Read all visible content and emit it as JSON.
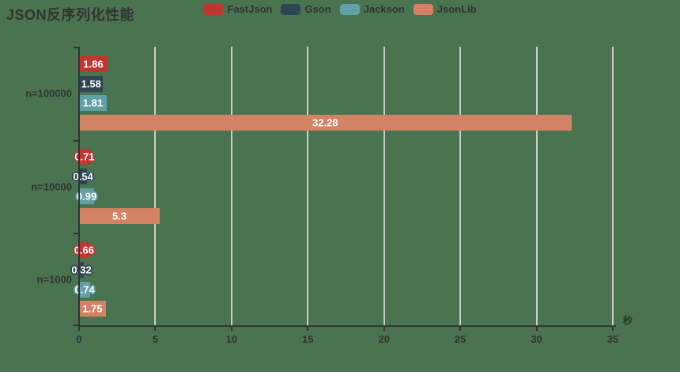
{
  "title": "JSON反序列化性能",
  "chart_data": {
    "type": "bar",
    "orientation": "horizontal",
    "title": "JSON反序列化性能",
    "categories": [
      "n=100000",
      "n=10000",
      "n=1000"
    ],
    "series": [
      {
        "name": "FastJson",
        "color": "#c23531",
        "values": [
          1.86,
          0.71,
          0.66
        ]
      },
      {
        "name": "Gson",
        "color": "#2f4554",
        "values": [
          1.58,
          0.54,
          0.32
        ]
      },
      {
        "name": "Jackson",
        "color": "#61a0a8",
        "values": [
          1.81,
          0.99,
          0.74
        ]
      },
      {
        "name": "JsonLib",
        "color": "#d48265",
        "values": [
          32.28,
          5.3,
          1.75
        ]
      }
    ],
    "xlabel": "秒",
    "x_ticks": [
      0,
      5,
      10,
      15,
      20,
      25,
      30,
      35
    ],
    "xlim": [
      0,
      35
    ],
    "grid": true,
    "legend_position": "top-center",
    "value_labels": "inside-center"
  },
  "colors": {
    "background": "#4a7350",
    "axis": "#333333",
    "grid": "#c9cfc9",
    "text": "#333333",
    "value_label_text": "#ffffff"
  }
}
